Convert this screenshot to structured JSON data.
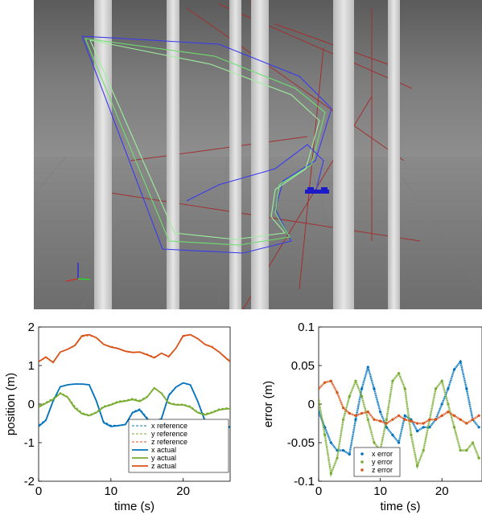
{
  "scene": {
    "title": ""
  },
  "chart_data": [
    {
      "type": "line",
      "xlabel": "time (s)",
      "ylabel": "position (m)",
      "xlim": [
        0,
        26.5
      ],
      "ylim": [
        -2,
        2
      ],
      "xticks": [
        0,
        10,
        20
      ],
      "yticks": [
        -2,
        -1,
        0,
        1,
        2
      ],
      "legend_position": "bottom-right",
      "series": [
        {
          "name": "x reference",
          "style": "dashed",
          "color": "#0072BD",
          "x": [
            0,
            1,
            2,
            3,
            4,
            5,
            6,
            7,
            8,
            9,
            10,
            11,
            12,
            13,
            14,
            15,
            16,
            17,
            18,
            19,
            20,
            21,
            22,
            23,
            24,
            25,
            26,
            26.5
          ],
          "values": [
            -0.55,
            -0.4,
            0.1,
            0.45,
            0.5,
            0.52,
            0.52,
            0.5,
            0.1,
            -0.45,
            -0.55,
            -0.55,
            -0.52,
            -0.2,
            -0.12,
            -0.35,
            -0.5,
            -0.35,
            0.25,
            0.45,
            0.55,
            0.5,
            0.1,
            -0.4,
            -0.55,
            -0.58,
            -0.58,
            -0.58
          ]
        },
        {
          "name": "y reference",
          "style": "dashed",
          "color": "#77AC30",
          "x": [
            0,
            1,
            2,
            3,
            4,
            5,
            6,
            7,
            8,
            9,
            10,
            11,
            12,
            13,
            14,
            15,
            16,
            17,
            18,
            19,
            20,
            21,
            22,
            23,
            24,
            25,
            26,
            26.5
          ],
          "values": [
            -0.05,
            0.05,
            0.15,
            0.3,
            0.2,
            -0.05,
            -0.22,
            -0.28,
            -0.2,
            -0.05,
            0.0,
            0.08,
            0.1,
            0.15,
            0.1,
            0.2,
            0.4,
            0.3,
            0.05,
            0.0,
            0.0,
            -0.05,
            -0.2,
            -0.25,
            -0.2,
            -0.12,
            -0.1,
            -0.1
          ]
        },
        {
          "name": "z reference",
          "style": "dashed",
          "color": "#D95319",
          "x": [
            0,
            1,
            2,
            3,
            4,
            5,
            6,
            7,
            8,
            9,
            10,
            11,
            12,
            13,
            14,
            15,
            16,
            17,
            18,
            19,
            20,
            21,
            22,
            23,
            24,
            25,
            26,
            26.5
          ],
          "values": [
            1.1,
            1.2,
            1.1,
            1.35,
            1.42,
            1.5,
            1.75,
            1.78,
            1.72,
            1.55,
            1.5,
            1.45,
            1.38,
            1.35,
            1.35,
            1.3,
            1.22,
            1.32,
            1.25,
            1.45,
            1.75,
            1.8,
            1.7,
            1.55,
            1.5,
            1.35,
            1.2,
            1.12
          ]
        },
        {
          "name": "x actual",
          "style": "solid",
          "color": "#0072BD",
          "x": [
            0,
            1,
            2,
            3,
            4,
            5,
            6,
            7,
            8,
            9,
            10,
            11,
            12,
            13,
            14,
            15,
            16,
            17,
            18,
            19,
            20,
            21,
            22,
            23,
            24,
            25,
            26,
            26.5
          ],
          "values": [
            -0.58,
            -0.42,
            0.08,
            0.45,
            0.5,
            0.52,
            0.52,
            0.5,
            0.08,
            -0.48,
            -0.58,
            -0.56,
            -0.53,
            -0.22,
            -0.15,
            -0.38,
            -0.52,
            -0.38,
            0.22,
            0.44,
            0.55,
            0.5,
            0.08,
            -0.43,
            -0.58,
            -0.6,
            -0.6,
            -0.6
          ]
        },
        {
          "name": "y actual",
          "style": "solid",
          "color": "#77AC30",
          "x": [
            0,
            1,
            2,
            3,
            4,
            5,
            6,
            7,
            8,
            9,
            10,
            11,
            12,
            13,
            14,
            15,
            16,
            17,
            18,
            19,
            20,
            21,
            22,
            23,
            24,
            25,
            26,
            26.5
          ],
          "values": [
            -0.08,
            0.02,
            0.12,
            0.28,
            0.18,
            -0.1,
            -0.25,
            -0.3,
            -0.22,
            -0.08,
            -0.02,
            0.05,
            0.08,
            0.12,
            0.07,
            0.18,
            0.42,
            0.28,
            0.02,
            -0.02,
            -0.02,
            -0.08,
            -0.22,
            -0.28,
            -0.22,
            -0.15,
            -0.12,
            -0.12
          ]
        },
        {
          "name": "z actual",
          "style": "solid",
          "color": "#D95319",
          "x": [
            0,
            1,
            2,
            3,
            4,
            5,
            6,
            7,
            8,
            9,
            10,
            11,
            12,
            13,
            14,
            15,
            16,
            17,
            18,
            19,
            20,
            21,
            22,
            23,
            24,
            25,
            26,
            26.5
          ],
          "values": [
            1.1,
            1.22,
            1.08,
            1.35,
            1.42,
            1.52,
            1.77,
            1.8,
            1.72,
            1.55,
            1.48,
            1.44,
            1.37,
            1.34,
            1.35,
            1.28,
            1.2,
            1.32,
            1.23,
            1.45,
            1.77,
            1.8,
            1.7,
            1.55,
            1.48,
            1.35,
            1.18,
            1.1
          ]
        }
      ]
    },
    {
      "type": "scatter",
      "xlabel": "time (s)",
      "ylabel": "error (m)",
      "xlim": [
        0,
        26.5
      ],
      "ylim": [
        -0.1,
        0.1
      ],
      "xticks": [
        0,
        10,
        20
      ],
      "yticks": [
        -0.1,
        -0.05,
        0,
        0.05,
        0.1
      ],
      "ytick_labels": [
        "-0.1",
        "-0.05",
        "0",
        "0.05",
        "0.1"
      ],
      "legend_position": "bottom-left",
      "series": [
        {
          "name": "x error",
          "color": "#0072BD",
          "x": [
            0,
            1,
            2,
            3,
            4,
            5,
            6,
            7,
            8,
            9,
            10,
            11,
            12,
            13,
            14,
            15,
            16,
            17,
            18,
            19,
            20,
            21,
            22,
            23,
            24,
            25,
            26
          ],
          "values": [
            -0.01,
            -0.03,
            -0.05,
            -0.06,
            -0.06,
            -0.065,
            -0.02,
            0.02,
            0.048,
            0.02,
            -0.01,
            -0.03,
            -0.04,
            -0.05,
            -0.015,
            -0.02,
            -0.035,
            -0.03,
            -0.03,
            -0.02,
            0.0,
            0.02,
            0.045,
            0.055,
            0.02,
            -0.02,
            -0.03
          ]
        },
        {
          "name": "y error",
          "color": "#77AC30",
          "x": [
            0,
            1,
            2,
            3,
            4,
            5,
            6,
            7,
            8,
            9,
            10,
            11,
            12,
            13,
            14,
            15,
            16,
            17,
            18,
            19,
            20,
            21,
            22,
            23,
            24,
            25,
            26
          ],
          "values": [
            0.005,
            -0.04,
            -0.09,
            -0.07,
            -0.02,
            0.01,
            0.03,
            0.01,
            -0.02,
            -0.05,
            -0.06,
            -0.02,
            0.03,
            0.04,
            0.02,
            -0.04,
            -0.08,
            -0.06,
            -0.02,
            0.02,
            0.03,
            0.0,
            -0.03,
            -0.06,
            -0.06,
            -0.05,
            -0.07
          ]
        },
        {
          "name": "z error",
          "color": "#D95319",
          "x": [
            0,
            1,
            2,
            3,
            4,
            5,
            6,
            7,
            8,
            9,
            10,
            11,
            12,
            13,
            14,
            15,
            16,
            17,
            18,
            19,
            20,
            21,
            22,
            23,
            24,
            25,
            26
          ],
          "values": [
            0.02,
            0.028,
            0.03,
            0.015,
            -0.005,
            -0.012,
            -0.015,
            -0.012,
            -0.01,
            -0.02,
            -0.022,
            -0.025,
            -0.02,
            -0.015,
            -0.02,
            -0.022,
            -0.025,
            -0.025,
            -0.02,
            -0.02,
            -0.015,
            -0.01,
            -0.015,
            -0.02,
            -0.025,
            -0.02,
            -0.015
          ]
        }
      ]
    }
  ]
}
